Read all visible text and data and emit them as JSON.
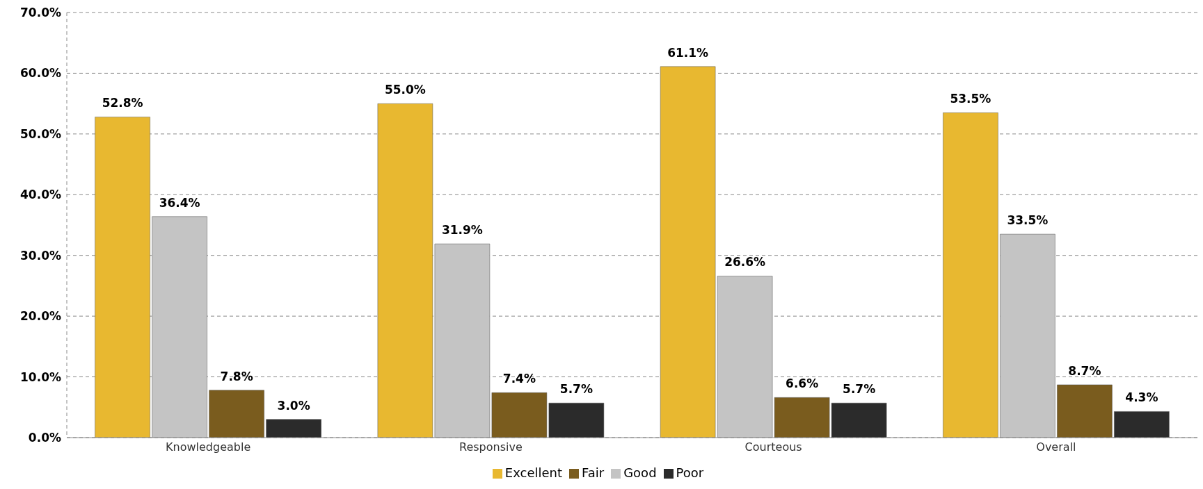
{
  "chart_data": {
    "type": "bar",
    "categories": [
      "Knowledgeable",
      "Responsive",
      "Courteous",
      "Overall"
    ],
    "series": [
      {
        "name": "Excellent",
        "color": "#e8b830",
        "values": [
          52.8,
          55.0,
          61.1,
          53.5
        ],
        "value_labels": [
          "52.8%",
          "55.0%",
          "61.1%",
          "53.5%"
        ]
      },
      {
        "name": "Good",
        "color": "#c4c4c4",
        "values": [
          36.4,
          31.9,
          26.6,
          33.5
        ],
        "value_labels": [
          "36.4%",
          "31.9%",
          "26.6%",
          "33.5%"
        ]
      },
      {
        "name": "Fair",
        "color": "#7a5c1e",
        "values": [
          7.8,
          7.4,
          6.6,
          8.7
        ],
        "value_labels": [
          "7.8%",
          "7.4%",
          "6.6%",
          "8.7%"
        ]
      },
      {
        "name": "Poor",
        "color": "#2b2b2b",
        "values": [
          3.0,
          5.7,
          5.7,
          4.3
        ],
        "value_labels": [
          "3.0%",
          "5.7%",
          "5.7%",
          "4.3%"
        ]
      }
    ],
    "ylim": [
      0,
      70
    ],
    "yticks": [
      {
        "value": 0,
        "label": "0.0%"
      },
      {
        "value": 10,
        "label": "10.0%"
      },
      {
        "value": 20,
        "label": "20.0%"
      },
      {
        "value": 30,
        "label": "30.0%"
      },
      {
        "value": 40,
        "label": "40.0%"
      },
      {
        "value": 50,
        "label": "50.0%"
      },
      {
        "value": 60,
        "label": "60.0%"
      },
      {
        "value": 70,
        "label": "70.0%"
      }
    ],
    "grid": "y",
    "legend": "bottom"
  }
}
